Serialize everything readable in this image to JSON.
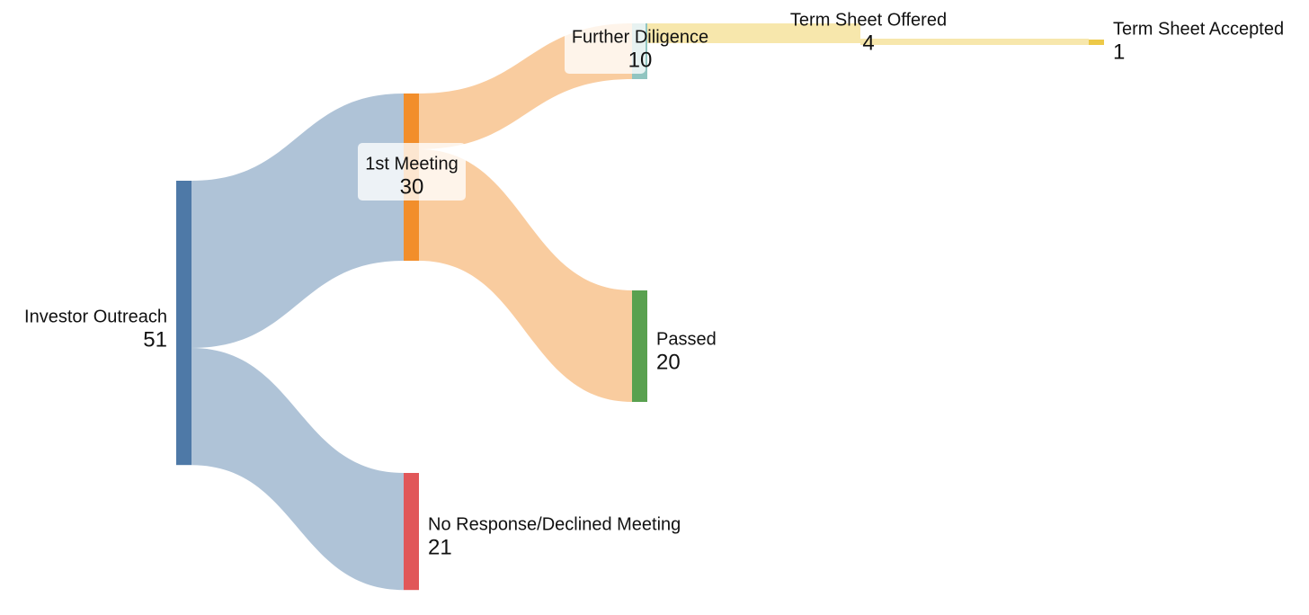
{
  "chart_data": {
    "type": "sankey",
    "nodes": [
      {
        "id": "outreach",
        "name": "Investor Outreach",
        "value": 51,
        "color": "#4e79a7"
      },
      {
        "id": "meeting",
        "name": "1st Meeting",
        "value": 30,
        "color": "#f28e2b"
      },
      {
        "id": "noresponse",
        "name": "No Response/Declined Meeting",
        "value": 21,
        "color": "#e15759"
      },
      {
        "id": "diligence",
        "name": "Further Diligence",
        "value": 10,
        "color": "#76b7b2"
      },
      {
        "id": "passed",
        "name": "Passed",
        "value": 20,
        "color": "#59a14f"
      },
      {
        "id": "termoffered",
        "name": "Term Sheet Offered",
        "value": 4,
        "color": "#edc948"
      },
      {
        "id": "termaccepted",
        "name": "Term Sheet Accepted",
        "value": 1,
        "color": "#edc948"
      }
    ],
    "links": [
      {
        "source": "outreach",
        "target": "meeting",
        "value": 30
      },
      {
        "source": "outreach",
        "target": "noresponse",
        "value": 21
      },
      {
        "source": "meeting",
        "target": "diligence",
        "value": 10
      },
      {
        "source": "meeting",
        "target": "passed",
        "value": 20
      },
      {
        "source": "diligence",
        "target": "termoffered",
        "value": 4
      },
      {
        "source": "termoffered",
        "target": "termaccepted",
        "value": 1
      }
    ]
  }
}
